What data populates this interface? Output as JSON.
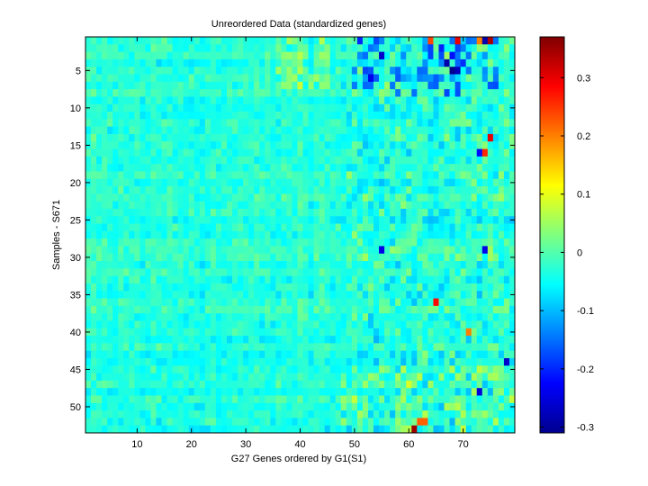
{
  "chart_data": {
    "type": "heatmap",
    "title": "Unreordered Data (standardized genes)",
    "xlabel": "G27 Genes ordered by G1(S1)",
    "ylabel": "Samples - S671",
    "n_cols": 79,
    "n_rows": 53,
    "xlim": [
      0.5,
      79.5
    ],
    "ylim": [
      0.5,
      53.5
    ],
    "y_direction": "top-down",
    "x_ticks": [
      10,
      20,
      30,
      40,
      50,
      60,
      70
    ],
    "y_ticks": [
      5,
      10,
      15,
      20,
      25,
      30,
      35,
      40,
      45,
      50
    ],
    "value_range": [
      -0.31,
      0.37
    ],
    "colormap": "jet",
    "colorbar": {
      "range": [
        -0.31,
        0.37
      ],
      "ticks": [
        -0.3,
        -0.2,
        -0.1,
        0,
        0.1,
        0.2,
        0.3
      ],
      "placement": "right"
    },
    "grid": false,
    "cell_value_note": "cell values are estimated; most lie between -0.12 and 0.08, with blue clusters in rows 1-8 near columns 52-75 and a few red cells near columns 63-76",
    "notable_cells": [
      {
        "row": 1,
        "col": 75,
        "value": 0.34
      },
      {
        "row": 1,
        "col": 69,
        "value": 0.3
      },
      {
        "row": 1,
        "col": 74,
        "value": -0.28
      },
      {
        "row": 1,
        "col": 73,
        "value": 0.2
      },
      {
        "row": 1,
        "col": 64,
        "value": 0.24
      },
      {
        "row": 3,
        "col": 55,
        "value": -0.26
      },
      {
        "row": 4,
        "col": 67,
        "value": -0.28
      },
      {
        "row": 5,
        "col": 68,
        "value": -0.3
      },
      {
        "row": 5,
        "col": 69,
        "value": -0.27
      },
      {
        "row": 6,
        "col": 53,
        "value": -0.24
      },
      {
        "row": 14,
        "col": 75,
        "value": 0.3
      },
      {
        "row": 16,
        "col": 74,
        "value": 0.26
      },
      {
        "row": 16,
        "col": 73,
        "value": -0.22
      },
      {
        "row": 36,
        "col": 65,
        "value": 0.28
      },
      {
        "row": 40,
        "col": 71,
        "value": 0.2
      },
      {
        "row": 44,
        "col": 78,
        "value": -0.26
      },
      {
        "row": 53,
        "col": 61,
        "value": 0.35
      },
      {
        "row": 52,
        "col": 62,
        "value": 0.22
      },
      {
        "row": 52,
        "col": 63,
        "value": 0.22
      },
      {
        "row": 48,
        "col": 73,
        "value": -0.25
      },
      {
        "row": 29,
        "col": 74,
        "value": -0.24
      },
      {
        "row": 29,
        "col": 55,
        "value": -0.24
      }
    ]
  }
}
